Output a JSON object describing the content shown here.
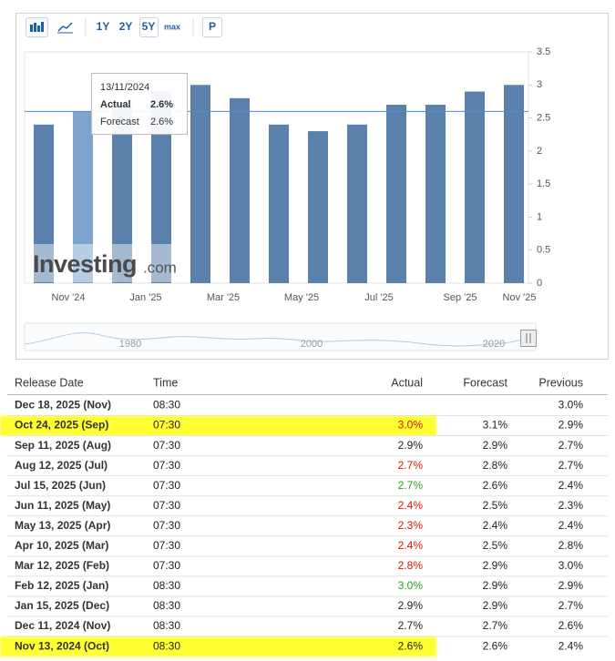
{
  "toolbar": {
    "buttons": [
      "1Y",
      "2Y",
      "5Y",
      "max",
      "P"
    ]
  },
  "chart_data": {
    "type": "bar",
    "values": [
      2.4,
      2.6,
      2.7,
      2.9,
      3.0,
      2.8,
      2.4,
      2.3,
      2.4,
      2.7,
      2.7,
      2.9,
      3.0
    ],
    "color": "#5b80ab",
    "hover_color": "#7fa3cf",
    "hover_index": 1,
    "hover_value": 2.6,
    "ylim": [
      0,
      3.5
    ],
    "yticks": [
      0,
      0.5,
      1,
      1.5,
      2,
      2.5,
      3,
      3.5
    ],
    "x_labels": [
      "Nov '24",
      "Jan '25",
      "Mar '25",
      "May '25",
      "Jul '25",
      "Sep '25",
      "Nov '25"
    ],
    "grid": false
  },
  "tooltip": {
    "date": "13/11/2024",
    "actual_label": "Actual",
    "actual": "2.6%",
    "forecast_label": "Forecast",
    "forecast": "2.6%"
  },
  "watermark": {
    "brand": "Investing",
    "suffix": ".com"
  },
  "navigator": {
    "years": [
      "1980",
      "2000",
      "2020"
    ]
  },
  "table": {
    "headers": [
      "Release Date",
      "Time",
      "Actual",
      "Forecast",
      "Previous"
    ],
    "rows": [
      {
        "date": "Dec 18, 2025 (Nov)",
        "time": "08:30",
        "actual": null,
        "forecast": null,
        "previous": "3.0%",
        "actual_color": "#222",
        "highlight": false
      },
      {
        "date": "Oct 24, 2025 (Sep)",
        "time": "07:30",
        "actual": "3.0%",
        "forecast": "3.1%",
        "previous": "2.9%",
        "actual_color": "#d91400",
        "highlight": true
      },
      {
        "date": "Sep 11, 2025 (Aug)",
        "time": "07:30",
        "actual": "2.9%",
        "forecast": "2.9%",
        "previous": "2.7%",
        "actual_color": "#222",
        "highlight": false
      },
      {
        "date": "Aug 12, 2025 (Jul)",
        "time": "07:30",
        "actual": "2.7%",
        "forecast": "2.8%",
        "previous": "2.7%",
        "actual_color": "#d91400",
        "highlight": false
      },
      {
        "date": "Jul 15, 2025 (Jun)",
        "time": "07:30",
        "actual": "2.7%",
        "forecast": "2.6%",
        "previous": "2.4%",
        "actual_color": "#2a9d1f",
        "highlight": false
      },
      {
        "date": "Jun 11, 2025 (May)",
        "time": "07:30",
        "actual": "2.4%",
        "forecast": "2.5%",
        "previous": "2.3%",
        "actual_color": "#d91400",
        "highlight": false
      },
      {
        "date": "May 13, 2025 (Apr)",
        "time": "07:30",
        "actual": "2.3%",
        "forecast": "2.4%",
        "previous": "2.4%",
        "actual_color": "#d91400",
        "highlight": false
      },
      {
        "date": "Apr 10, 2025 (Mar)",
        "time": "07:30",
        "actual": "2.4%",
        "forecast": "2.5%",
        "previous": "2.8%",
        "actual_color": "#d91400",
        "highlight": false
      },
      {
        "date": "Mar 12, 2025 (Feb)",
        "time": "07:30",
        "actual": "2.8%",
        "forecast": "2.9%",
        "previous": "3.0%",
        "actual_color": "#d91400",
        "highlight": false
      },
      {
        "date": "Feb 12, 2025 (Jan)",
        "time": "08:30",
        "actual": "3.0%",
        "forecast": "2.9%",
        "previous": "2.9%",
        "actual_color": "#2a9d1f",
        "highlight": false
      },
      {
        "date": "Jan 15, 2025 (Dec)",
        "time": "08:30",
        "actual": "2.9%",
        "forecast": "2.9%",
        "previous": "2.7%",
        "actual_color": "#222",
        "highlight": false
      },
      {
        "date": "Dec 11, 2024 (Nov)",
        "time": "08:30",
        "actual": "2.7%",
        "forecast": "2.7%",
        "previous": "2.6%",
        "actual_color": "#222",
        "highlight": false
      },
      {
        "date": "Nov 13, 2024 (Oct)",
        "time": "08:30",
        "actual": "2.6%",
        "forecast": "2.6%",
        "previous": "2.4%",
        "actual_color": "#222",
        "highlight": true
      }
    ]
  }
}
